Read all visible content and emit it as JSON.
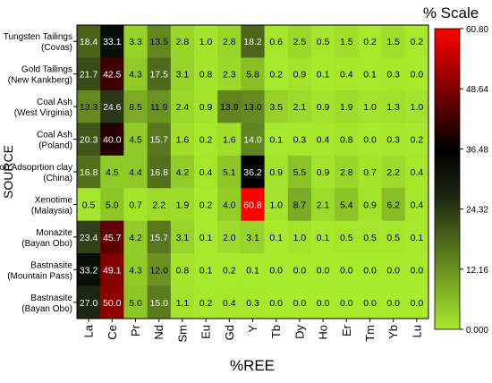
{
  "chart_data": {
    "type": "heatmap",
    "title": "% Scale",
    "xlabel": "%REE",
    "ylabel": "SOURCE",
    "columns": [
      "La",
      "Ce",
      "Pr",
      "Nd",
      "Sm",
      "Eu",
      "Gd",
      "Y",
      "Tb",
      "Dy",
      "Ho",
      "Er",
      "Tm",
      "Yb",
      "Lu"
    ],
    "rows": [
      {
        "label_line1": "Tungsten Tailings",
        "label_line2": "(Covas)",
        "values": [
          18.4,
          33.1,
          3.3,
          13.5,
          2.8,
          1.0,
          2.8,
          18.2,
          0.6,
          2.5,
          0.5,
          1.5,
          0.2,
          1.5,
          0.2
        ]
      },
      {
        "label_line1": "Gold Tailings",
        "label_line2": "(New Kankberg)",
        "values": [
          21.7,
          42.5,
          4.3,
          17.5,
          3.1,
          0.8,
          2.3,
          5.8,
          0.2,
          0.9,
          0.1,
          0.4,
          0.1,
          0.3,
          0.0
        ]
      },
      {
        "label_line1": "Coal Ash",
        "label_line2": "(West Virginia)",
        "values": [
          13.3,
          24.6,
          8.5,
          11.9,
          2.4,
          0.9,
          13.9,
          13.0,
          3.5,
          2.1,
          0.9,
          1.9,
          1.0,
          1.3,
          1.0
        ]
      },
      {
        "label_line1": "Coal Ash",
        "label_line2": "(Poland)",
        "values": [
          20.3,
          40.0,
          4.5,
          15.7,
          1.6,
          0.2,
          1.6,
          14.0,
          0.1,
          0.3,
          0.4,
          0.8,
          0.0,
          0.3,
          0.2
        ]
      },
      {
        "label_line1": "Ion Adsoprtion clay",
        "label_line2": "(China)",
        "values": [
          16.8,
          4.5,
          4.4,
          16.8,
          4.2,
          0.4,
          5.1,
          36.2,
          0.9,
          5.5,
          0.9,
          2.8,
          0.7,
          2.2,
          0.4
        ]
      },
      {
        "label_line1": "Xenotime",
        "label_line2": "(Malaysia)",
        "values": [
          0.5,
          5.0,
          0.7,
          2.2,
          1.9,
          0.2,
          4.0,
          60.8,
          1.0,
          8.7,
          2.1,
          5.4,
          0.9,
          6.2,
          0.4
        ]
      },
      {
        "label_line1": "Monazite",
        "label_line2": "(Bayan Obo)",
        "values": [
          23.4,
          45.7,
          4.2,
          15.7,
          3.1,
          0.1,
          2.0,
          3.1,
          0.1,
          1.0,
          0.1,
          0.5,
          0.5,
          0.5,
          0.1
        ]
      },
      {
        "label_line1": "Bastnasite",
        "label_line2": "(Mountain Pass)",
        "values": [
          33.2,
          49.1,
          4.3,
          12.0,
          0.8,
          0.1,
          0.2,
          0.1,
          0.0,
          0.0,
          0.0,
          0.0,
          0.0,
          0.0,
          0.0
        ]
      },
      {
        "label_line1": "Bastnasite",
        "label_line2": "(Bayan Obo)",
        "values": [
          27.0,
          50.0,
          5.0,
          15.0,
          1.1,
          0.2,
          0.4,
          0.3,
          0.0,
          0.0,
          0.0,
          0.0,
          0.0,
          0.0,
          0.0
        ]
      }
    ],
    "colorbar": {
      "ticks": [
        "60.80",
        "48.64",
        "36.48",
        "24.32",
        "12.16",
        "0.000"
      ],
      "range": [
        0,
        60.8
      ],
      "stops": [
        {
          "at": 0.0,
          "color": "#a8ea2c"
        },
        {
          "at": 0.45,
          "color": "#1c2212"
        },
        {
          "at": 0.6,
          "color": "#000000"
        },
        {
          "at": 1.0,
          "color": "#ff0000"
        }
      ]
    }
  }
}
